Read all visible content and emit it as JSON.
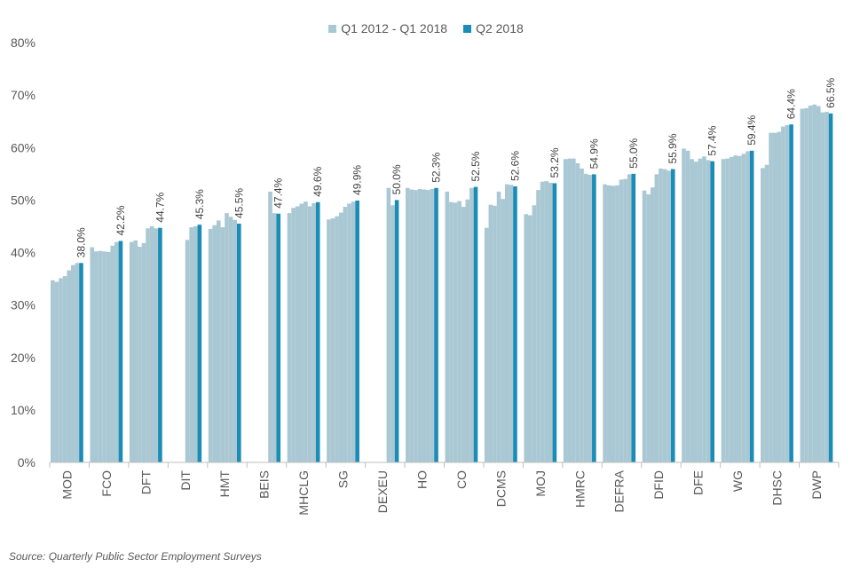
{
  "chart_data": {
    "type": "bar",
    "ylim": [
      0,
      80
    ],
    "yticks": [
      "0%",
      "10%",
      "20%",
      "30%",
      "40%",
      "50%",
      "60%",
      "70%",
      "80%"
    ],
    "legend_position": "top-center",
    "series": [
      {
        "name": "Q1 2012 - Q1 2018",
        "color": "#a9c8d3"
      },
      {
        "name": "Q2 2018",
        "color": "#1a8cb5"
      }
    ],
    "departments": [
      {
        "name": "MOD",
        "history": [
          34.7,
          34.4,
          35.1,
          35.5,
          36.6,
          37.6,
          38.0
        ],
        "q2_2018": 38.0,
        "label": "38.0%"
      },
      {
        "name": "FCO",
        "history": [
          41.0,
          40.2,
          40.3,
          40.2,
          40.1,
          41.3,
          42.0
        ],
        "q2_2018": 42.2,
        "label": "42.2%"
      },
      {
        "name": "DFT",
        "history": [
          42.0,
          42.3,
          41.1,
          41.8,
          44.6,
          45.0,
          44.6
        ],
        "q2_2018": 44.7,
        "label": "44.7%"
      },
      {
        "name": "DIT",
        "history": [
          null,
          null,
          null,
          null,
          42.4,
          44.8,
          45.0
        ],
        "q2_2018": 45.3,
        "label": "45.3%"
      },
      {
        "name": "HMT",
        "history": [
          44.5,
          45.2,
          46.1,
          44.8,
          47.5,
          46.8,
          46.2
        ],
        "q2_2018": 45.5,
        "label": "45.5%"
      },
      {
        "name": "BEIS",
        "history": [
          null,
          null,
          null,
          null,
          null,
          51.6,
          47.5
        ],
        "q2_2018": 47.4,
        "label": "47.4%"
      },
      {
        "name": "MHCLG",
        "history": [
          47.5,
          48.5,
          48.8,
          49.3,
          49.7,
          48.8,
          49.4
        ],
        "q2_2018": 49.6,
        "label": "49.6%"
      },
      {
        "name": "SG",
        "history": [
          46.3,
          46.5,
          46.9,
          47.6,
          48.7,
          49.3,
          49.7
        ],
        "q2_2018": 49.9,
        "label": "49.9%"
      },
      {
        "name": "DEXEU",
        "history": [
          null,
          null,
          null,
          null,
          null,
          52.3,
          49.0
        ],
        "q2_2018": 50.0,
        "label": "50.0%"
      },
      {
        "name": "HO",
        "history": [
          52.3,
          52.0,
          51.9,
          52.1,
          52.0,
          51.9,
          52.1
        ],
        "q2_2018": 52.3,
        "label": "52.3%"
      },
      {
        "name": "CO",
        "history": [
          51.6,
          49.6,
          49.5,
          49.8,
          48.7,
          50.1,
          52.3
        ],
        "q2_2018": 52.5,
        "label": "52.5%"
      },
      {
        "name": "DCMS",
        "history": [
          44.7,
          49.1,
          48.9,
          51.6,
          50.2,
          53.0,
          52.9
        ],
        "q2_2018": 52.6,
        "label": "52.6%"
      },
      {
        "name": "MOJ",
        "history": [
          47.3,
          47.1,
          49.0,
          51.9,
          53.5,
          53.6,
          53.3
        ],
        "q2_2018": 53.2,
        "label": "53.2%"
      },
      {
        "name": "HMRC",
        "history": [
          57.8,
          57.9,
          57.9,
          57.0,
          56.0,
          55.0,
          54.8
        ],
        "q2_2018": 54.9,
        "label": "54.9%"
      },
      {
        "name": "DEFRA",
        "history": [
          53.0,
          52.8,
          52.7,
          52.8,
          53.9,
          54.0,
          54.9
        ],
        "q2_2018": 55.0,
        "label": "55.0%"
      },
      {
        "name": "DFID",
        "history": [
          51.8,
          51.1,
          52.4,
          54.9,
          56.0,
          55.9,
          55.6
        ],
        "q2_2018": 55.9,
        "label": "55.9%"
      },
      {
        "name": "DFE",
        "history": [
          59.8,
          59.4,
          57.8,
          57.3,
          57.9,
          58.3,
          57.6
        ],
        "q2_2018": 57.4,
        "label": "57.4%"
      },
      {
        "name": "WG",
        "history": [
          57.8,
          57.9,
          58.2,
          58.5,
          58.4,
          58.8,
          59.3
        ],
        "q2_2018": 59.4,
        "label": "59.4%"
      },
      {
        "name": "DHSC",
        "history": [
          56.1,
          56.7,
          62.8,
          62.8,
          63.0,
          64.0,
          64.3
        ],
        "q2_2018": 64.4,
        "label": "64.4%"
      },
      {
        "name": "DWP",
        "history": [
          67.4,
          67.5,
          68.0,
          68.2,
          67.9,
          66.7,
          66.8
        ],
        "q2_2018": 66.5,
        "label": "66.5%"
      }
    ]
  },
  "source": "Source: Quarterly  Public Sector Employment  Surveys"
}
